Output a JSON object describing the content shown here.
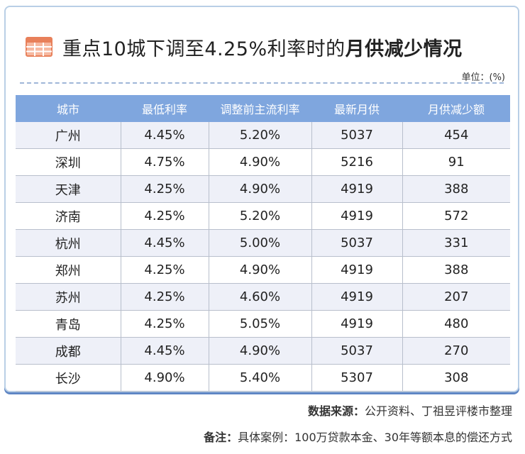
{
  "title": {
    "prefix": "重点10城下调至4.25%利率时的",
    "bold": "月供减少情况"
  },
  "unit": "单位：(%)",
  "table": {
    "headers": [
      "城市",
      "最低利率",
      "调整前主流利率",
      "最新月供",
      "月供减少额"
    ],
    "rows": [
      [
        "广州",
        "4.45%",
        "5.20%",
        "5037",
        "454"
      ],
      [
        "深圳",
        "4.75%",
        "4.90%",
        "5216",
        "91"
      ],
      [
        "天津",
        "4.25%",
        "4.90%",
        "4919",
        "388"
      ],
      [
        "济南",
        "4.25%",
        "5.20%",
        "4919",
        "572"
      ],
      [
        "杭州",
        "4.45%",
        "5.00%",
        "5037",
        "331"
      ],
      [
        "郑州",
        "4.25%",
        "4.90%",
        "4919",
        "388"
      ],
      [
        "苏州",
        "4.25%",
        "4.60%",
        "4919",
        "207"
      ],
      [
        "青岛",
        "4.25%",
        "5.05%",
        "4919",
        "480"
      ],
      [
        "成都",
        "4.45%",
        "4.90%",
        "5037",
        "270"
      ],
      [
        "长沙",
        "4.90%",
        "5.40%",
        "5307",
        "308"
      ]
    ]
  },
  "source": {
    "label": "数据来源：",
    "text": "公开资料、丁祖昱评楼市整理"
  },
  "note": {
    "label": "备注：",
    "text": "具体案例：100万贷款本金、30年等额本息的偿还方式"
  },
  "colors": {
    "header_bg": "#7fa6de",
    "stripe": "#eef0f8",
    "icon": "#e8805a",
    "border": "#b9cfe6"
  },
  "icons": {
    "title_icon": "table-icon"
  }
}
